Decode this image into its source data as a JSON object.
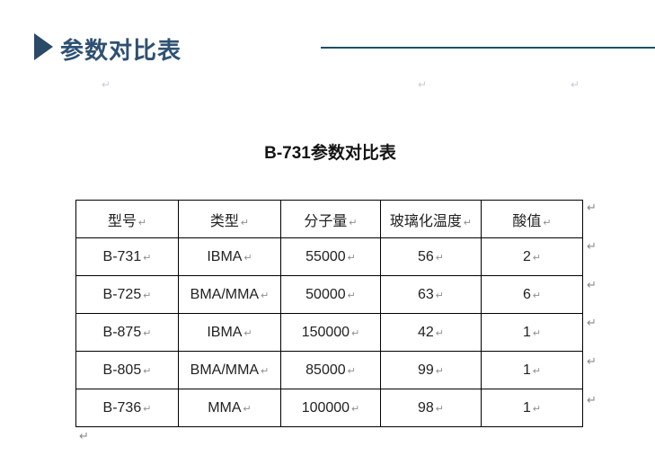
{
  "header": {
    "title": "参数对比表"
  },
  "caption": "B-731参数对比表",
  "table": {
    "headers": [
      "型号",
      "类型",
      "分子量",
      "玻璃化温度",
      "酸值"
    ],
    "rows": [
      [
        "B-731",
        "IBMA",
        "55000",
        "56",
        "2"
      ],
      [
        "B-725",
        "BMA/MMA",
        "50000",
        "63",
        "6"
      ],
      [
        "B-875",
        "IBMA",
        "150000",
        "42",
        "1"
      ],
      [
        "B-805",
        "BMA/MMA",
        "85000",
        "99",
        "1"
      ],
      [
        "B-736",
        "MMA",
        "100000",
        "98",
        "1"
      ]
    ]
  },
  "formatting_marks": {
    "paragraph_mark": "↵"
  },
  "colors": {
    "accent_title": "#2e5172",
    "rule_line": "#1f4e66",
    "table_border": "#000000",
    "mark_gray": "#8a8a8a"
  }
}
